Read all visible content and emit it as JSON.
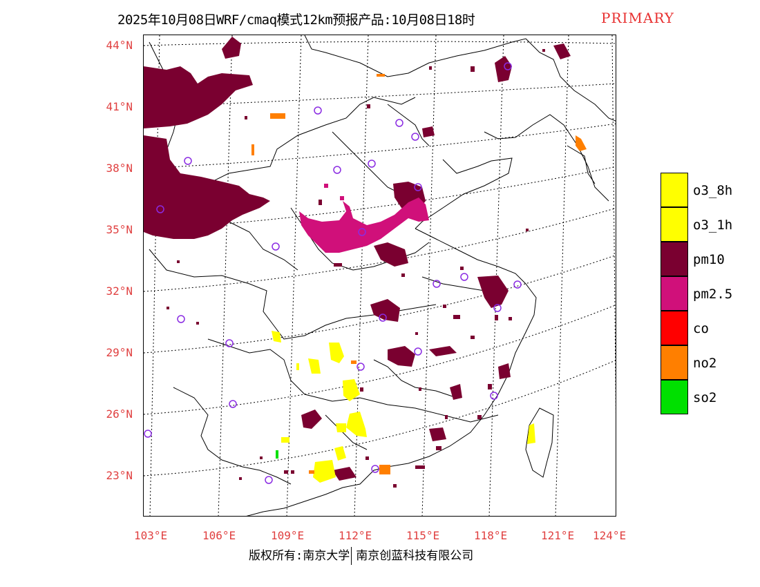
{
  "title": {
    "main": "2025年10月08日WRF/cmaq模式12km预报产品:10月08日18时",
    "tag": "PRIMARY"
  },
  "axes": {
    "lat_labels": [
      "44°N",
      "41°N",
      "38°N",
      "35°N",
      "32°N",
      "29°N",
      "26°N",
      "23°N"
    ],
    "lon_labels": [
      "103°E",
      "106°E",
      "109°E",
      "112°E",
      "115°E",
      "118°E",
      "121°E",
      "124°E"
    ]
  },
  "legend": [
    {
      "label": "o3_8h",
      "color": "#ffff00"
    },
    {
      "label": "o3_1h",
      "color": "#ffff00"
    },
    {
      "label": "pm10",
      "color": "#7a0030"
    },
    {
      "label": "pm2.5",
      "color": "#d0107a"
    },
    {
      "label": "co",
      "color": "#ff0000"
    },
    {
      "label": "no2",
      "color": "#ff7f00"
    },
    {
      "label": "so2",
      "color": "#00e000"
    }
  ],
  "copyright": {
    "left": "版权所有:南京大学",
    "right": "南京创蓝科技有限公司"
  },
  "colors": {
    "pm10": "#7a0030",
    "pm25": "#d0107a",
    "o3": "#ffff00",
    "no2": "#ff7f00",
    "so2": "#00e000",
    "station": "#8a2be2",
    "grid": "#000000",
    "axis_label": "#e04040"
  }
}
